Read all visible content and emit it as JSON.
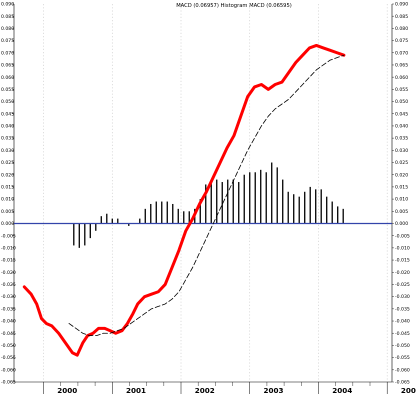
{
  "chart_data": {
    "type": "line",
    "title": "MACD (0.06957) Histogram MACD (0.06595)",
    "xlabel": "",
    "ylabel": "",
    "x_tick_labels": [
      "2000",
      "2001",
      "2002",
      "2003",
      "2004",
      "200"
    ],
    "y_tick_labels": [
      "0.090",
      "0.085",
      "0.080",
      "0.075",
      "0.070",
      "0.065",
      "0.060",
      "0.055",
      "0.050",
      "0.045",
      "0.040",
      "0.035",
      "0.030",
      "0.025",
      "0.020",
      "0.015",
      "0.010",
      "0.005",
      "0.000",
      "-0.005",
      "-0.010",
      "-0.015",
      "-0.020",
      "-0.025",
      "-0.030",
      "-0.035",
      "-0.040",
      "-0.045",
      "-0.050",
      "-0.055",
      "-0.060",
      "-0.065"
    ],
    "ylim": [
      -0.065,
      0.09
    ],
    "xlim": [
      1999.55,
      2005.05
    ],
    "grid": true,
    "colors": {
      "macd": "#ff0000",
      "signal": "#000000",
      "histogram": "#000000",
      "zero_line": "#3344aa",
      "grid": "#c8c8c8"
    },
    "series": [
      {
        "key": "macd",
        "style": "thick-solid",
        "x": [
          1999.7,
          1999.8,
          1999.88,
          1999.95,
          2000.02,
          2000.1,
          2000.2,
          2000.3,
          2000.4,
          2000.47,
          2000.55,
          2000.62,
          2000.7,
          2000.78,
          2000.87,
          2000.95,
          2001.03,
          2001.12,
          2001.2,
          2001.28,
          2001.35,
          2001.45,
          2001.55,
          2001.65,
          2001.75,
          2001.85,
          2001.95,
          2002.05,
          2002.15,
          2002.25,
          2002.35,
          2002.45,
          2002.55,
          2002.65,
          2002.75,
          2002.85,
          2002.95,
          2003.05,
          2003.15,
          2003.25,
          2003.35,
          2003.45,
          2003.55,
          2003.65,
          2003.75,
          2003.85,
          2003.95,
          2004.05,
          2004.15,
          2004.25,
          2004.35
        ],
        "values": [
          -0.026,
          -0.029,
          -0.033,
          -0.039,
          -0.041,
          -0.042,
          -0.045,
          -0.049,
          -0.053,
          -0.054,
          -0.049,
          -0.046,
          -0.045,
          -0.043,
          -0.043,
          -0.044,
          -0.045,
          -0.044,
          -0.041,
          -0.037,
          -0.033,
          -0.03,
          -0.029,
          -0.028,
          -0.025,
          -0.018,
          -0.011,
          -0.003,
          0.002,
          0.008,
          0.013,
          0.019,
          0.025,
          0.031,
          0.036,
          0.044,
          0.052,
          0.056,
          0.057,
          0.055,
          0.057,
          0.058,
          0.062,
          0.066,
          0.069,
          0.072,
          0.073,
          0.072,
          0.071,
          0.07,
          0.069
        ]
      },
      {
        "key": "signal",
        "style": "dashed",
        "x": [
          2000.35,
          2000.45,
          2000.55,
          2000.65,
          2000.75,
          2000.85,
          2000.95,
          2001.05,
          2001.15,
          2001.25,
          2001.35,
          2001.45,
          2001.55,
          2001.65,
          2001.75,
          2001.85,
          2001.95,
          2002.05,
          2002.15,
          2002.25,
          2002.35,
          2002.45,
          2002.55,
          2002.65,
          2002.75,
          2002.85,
          2002.95,
          2003.05,
          2003.15,
          2003.25,
          2003.35,
          2003.45,
          2003.55,
          2003.65,
          2003.75,
          2003.85,
          2003.95,
          2004.05,
          2004.15,
          2004.25,
          2004.35
        ],
        "values": [
          -0.041,
          -0.043,
          -0.045,
          -0.046,
          -0.046,
          -0.045,
          -0.045,
          -0.044,
          -0.043,
          -0.041,
          -0.039,
          -0.037,
          -0.035,
          -0.034,
          -0.033,
          -0.031,
          -0.028,
          -0.023,
          -0.018,
          -0.012,
          -0.006,
          0.0,
          0.006,
          0.012,
          0.018,
          0.024,
          0.03,
          0.035,
          0.04,
          0.044,
          0.047,
          0.049,
          0.051,
          0.054,
          0.057,
          0.06,
          0.063,
          0.065,
          0.067,
          0.068,
          0.069
        ]
      }
    ],
    "histogram": {
      "x": [
        2000.42,
        2000.5,
        2000.58,
        2000.66,
        2000.74,
        2000.82,
        2000.9,
        2000.98,
        2001.06,
        2001.14,
        2001.22,
        2001.3,
        2001.38,
        2001.46,
        2001.54,
        2001.62,
        2001.7,
        2001.78,
        2001.86,
        2001.94,
        2002.02,
        2002.1,
        2002.18,
        2002.26,
        2002.34,
        2002.42,
        2002.5,
        2002.58,
        2002.66,
        2002.74,
        2002.82,
        2002.9,
        2002.98,
        2003.06,
        2003.14,
        2003.22,
        2003.3,
        2003.38,
        2003.46,
        2003.54,
        2003.62,
        2003.7,
        2003.78,
        2003.86,
        2003.94,
        2004.02,
        2004.1,
        2004.18,
        2004.26,
        2004.34
      ],
      "values": [
        -0.009,
        -0.01,
        -0.009,
        -0.006,
        -0.003,
        0.003,
        0.004,
        0.002,
        0.002,
        0.0,
        -0.001,
        0.0,
        0.002,
        0.006,
        0.008,
        0.009,
        0.009,
        0.009,
        0.008,
        0.006,
        0.005,
        0.005,
        0.006,
        0.01,
        0.016,
        0.018,
        0.018,
        0.017,
        0.018,
        0.018,
        0.017,
        0.02,
        0.021,
        0.021,
        0.022,
        0.021,
        0.025,
        0.023,
        0.018,
        0.013,
        0.012,
        0.011,
        0.013,
        0.015,
        0.014,
        0.014,
        0.011,
        0.009,
        0.007,
        0.006
      ]
    },
    "zero_line": 0.0
  }
}
